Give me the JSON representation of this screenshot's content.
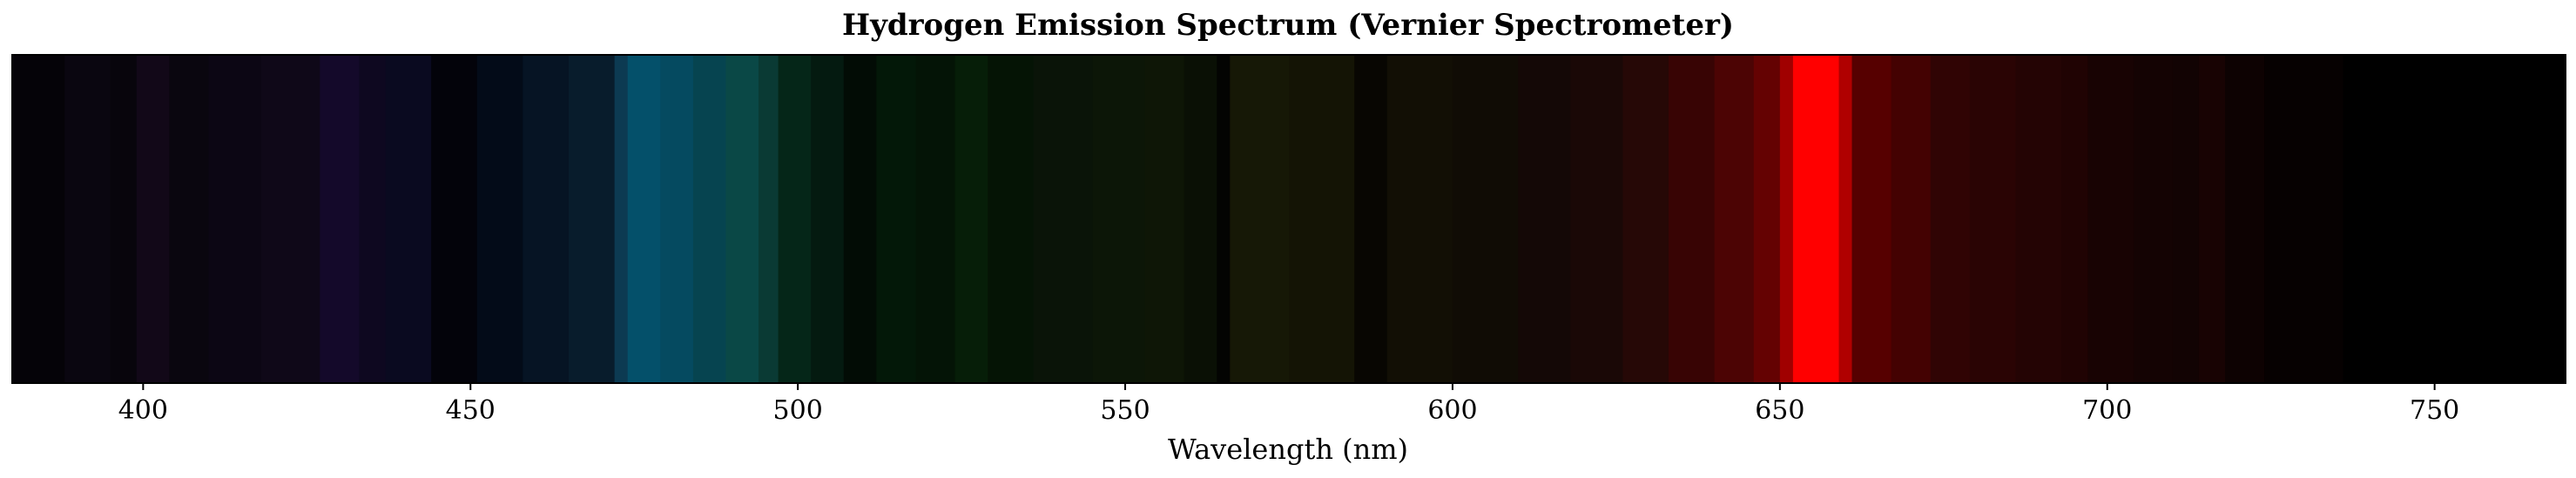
{
  "chart_data": {
    "type": "heatmap",
    "title": "Hydrogen Emission Spectrum (Vernier Spectrometer)",
    "xlabel": "Wavelength (nm)",
    "ylabel": "",
    "xlim": [
      380,
      770
    ],
    "xticks": [
      400,
      450,
      500,
      550,
      600,
      650,
      700,
      750
    ],
    "xtick_labels": [
      "400",
      "450",
      "500",
      "550",
      "600",
      "650",
      "700",
      "750"
    ],
    "grid": false,
    "legend": "none",
    "baseline_color": "#000000",
    "bands": [
      {
        "start": 380,
        "end": 388,
        "color": "#050308"
      },
      {
        "start": 388,
        "end": 395,
        "color": "#0a0610"
      },
      {
        "start": 395,
        "end": 399,
        "color": "#08050c"
      },
      {
        "start": 399,
        "end": 404,
        "color": "#120818"
      },
      {
        "start": 404,
        "end": 410,
        "color": "#0a060f"
      },
      {
        "start": 410,
        "end": 418,
        "color": "#0c0614"
      },
      {
        "start": 418,
        "end": 427,
        "color": "#0f0818"
      },
      {
        "start": 427,
        "end": 433,
        "color": "#14092a"
      },
      {
        "start": 433,
        "end": 437,
        "color": "#0e0820"
      },
      {
        "start": 437,
        "end": 444,
        "color": "#0a0a20"
      },
      {
        "start": 444,
        "end": 451,
        "color": "#03030a"
      },
      {
        "start": 451,
        "end": 458,
        "color": "#030b18"
      },
      {
        "start": 458,
        "end": 465,
        "color": "#061424"
      },
      {
        "start": 465,
        "end": 472,
        "color": "#081c2c"
      },
      {
        "start": 472,
        "end": 474,
        "color": "#0c3a52"
      },
      {
        "start": 474,
        "end": 479,
        "color": "#04506a"
      },
      {
        "start": 479,
        "end": 484,
        "color": "#054a60"
      },
      {
        "start": 484,
        "end": 489,
        "color": "#064450"
      },
      {
        "start": 489,
        "end": 494,
        "color": "#0a4846"
      },
      {
        "start": 494,
        "end": 497,
        "color": "#0a3a34"
      },
      {
        "start": 497,
        "end": 502,
        "color": "#052618"
      },
      {
        "start": 502,
        "end": 507,
        "color": "#041a10"
      },
      {
        "start": 507,
        "end": 512,
        "color": "#020c05"
      },
      {
        "start": 512,
        "end": 518,
        "color": "#031808"
      },
      {
        "start": 518,
        "end": 524,
        "color": "#041406"
      },
      {
        "start": 524,
        "end": 529,
        "color": "#061e08"
      },
      {
        "start": 529,
        "end": 536,
        "color": "#051405"
      },
      {
        "start": 536,
        "end": 545,
        "color": "#0a1408"
      },
      {
        "start": 545,
        "end": 553,
        "color": "#0c1607"
      },
      {
        "start": 553,
        "end": 559,
        "color": "#0e1606"
      },
      {
        "start": 559,
        "end": 564,
        "color": "#0a1005"
      },
      {
        "start": 564,
        "end": 566,
        "color": "#030402"
      },
      {
        "start": 566,
        "end": 575,
        "color": "#161806"
      },
      {
        "start": 575,
        "end": 585,
        "color": "#141405"
      },
      {
        "start": 585,
        "end": 590,
        "color": "#080602"
      },
      {
        "start": 590,
        "end": 600,
        "color": "#120f05"
      },
      {
        "start": 600,
        "end": 610,
        "color": "#100c05"
      },
      {
        "start": 610,
        "end": 618,
        "color": "#140806"
      },
      {
        "start": 618,
        "end": 626,
        "color": "#1a0806"
      },
      {
        "start": 626,
        "end": 633,
        "color": "#260806"
      },
      {
        "start": 633,
        "end": 640,
        "color": "#380404"
      },
      {
        "start": 640,
        "end": 646,
        "color": "#4c0404"
      },
      {
        "start": 646,
        "end": 650,
        "color": "#640202"
      },
      {
        "start": 650,
        "end": 652,
        "color": "#a00000"
      },
      {
        "start": 652,
        "end": 659,
        "color": "#ff0000"
      },
      {
        "start": 659,
        "end": 661,
        "color": "#b00000"
      },
      {
        "start": 661,
        "end": 667,
        "color": "#560000"
      },
      {
        "start": 667,
        "end": 673,
        "color": "#440202"
      },
      {
        "start": 673,
        "end": 679,
        "color": "#300404"
      },
      {
        "start": 679,
        "end": 686,
        "color": "#2a0404"
      },
      {
        "start": 686,
        "end": 693,
        "color": "#240404"
      },
      {
        "start": 693,
        "end": 697,
        "color": "#200303"
      },
      {
        "start": 697,
        "end": 704,
        "color": "#180303"
      },
      {
        "start": 704,
        "end": 710,
        "color": "#140303"
      },
      {
        "start": 710,
        "end": 714,
        "color": "#120303"
      },
      {
        "start": 714,
        "end": 718,
        "color": "#180303"
      },
      {
        "start": 718,
        "end": 724,
        "color": "#0d0202"
      },
      {
        "start": 724,
        "end": 736,
        "color": "#060101"
      },
      {
        "start": 736,
        "end": 770,
        "color": "#000000"
      }
    ]
  }
}
